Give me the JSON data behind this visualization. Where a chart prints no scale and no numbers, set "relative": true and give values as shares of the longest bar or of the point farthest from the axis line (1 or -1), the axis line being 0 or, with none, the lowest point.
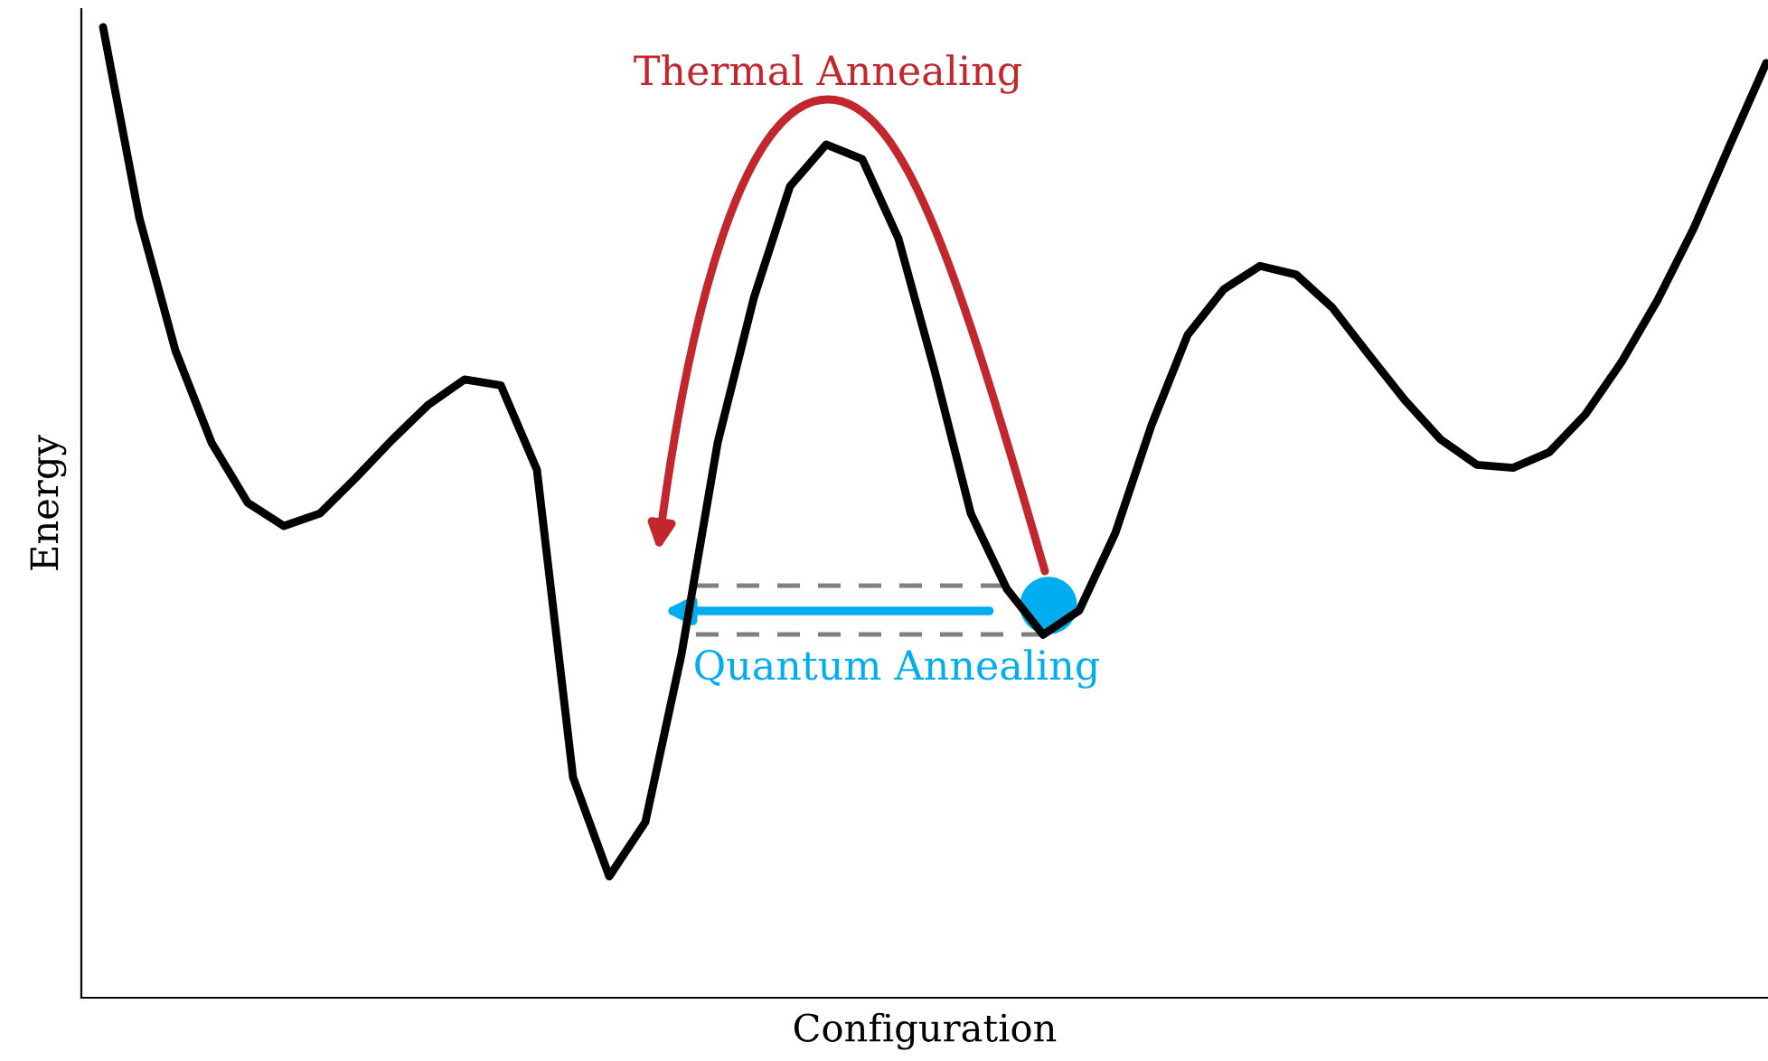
{
  "chart_data": {
    "type": "line",
    "relative": true,
    "xlabel": "Configuration",
    "ylabel": "Energy",
    "annotations": [
      "Thermal Annealing",
      "Quantum Annealing"
    ],
    "categories": [
      null,
      null,
      null,
      null,
      null,
      null,
      null,
      null,
      null,
      null,
      null,
      null,
      null,
      null,
      null,
      null,
      null,
      null,
      null,
      null,
      null,
      null,
      null,
      null,
      null,
      null,
      null,
      null,
      null,
      null,
      null,
      null,
      null,
      null,
      null,
      null,
      null,
      null,
      null,
      null,
      null,
      null,
      null,
      null,
      null,
      null,
      null
    ],
    "series": [
      {
        "color": "#000000",
        "values": [
          1.0,
          0.804,
          0.667,
          0.572,
          0.51,
          0.486,
          0.499,
          0.536,
          0.575,
          0.611,
          0.637,
          0.631,
          0.544,
          0.227,
          0.125,
          0.181,
          0.354,
          0.572,
          0.721,
          0.836,
          0.879,
          0.864,
          0.782,
          0.646,
          0.499,
          0.421,
          0.374,
          0.399,
          0.479,
          0.59,
          0.683,
          0.73,
          0.754,
          0.745,
          0.711,
          0.663,
          0.616,
          0.575,
          0.549,
          0.546,
          0.562,
          0.601,
          0.655,
          0.719,
          0.793,
          0.879,
          0.963
        ]
      }
    ]
  }
}
